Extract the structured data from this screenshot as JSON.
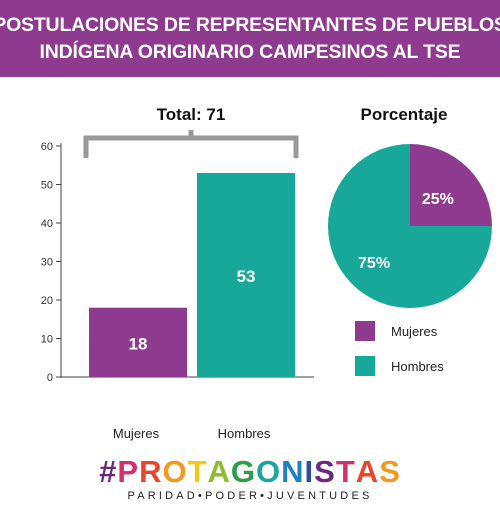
{
  "header": {
    "line1": "POSTULACIONES DE REPRESENTANTES DE PUEBLOS",
    "line2": "INDÍGENA ORIGINARIO CAMPESINOS  AL TSE",
    "color": "#8e3a8f"
  },
  "chart_data": [
    {
      "type": "bar",
      "title": "Total: 71",
      "categories": [
        "Mujeres",
        "Hombres"
      ],
      "values": [
        18,
        53
      ],
      "data_labels": [
        "18",
        "53"
      ],
      "colors": [
        "#8e3a8f",
        "#17a89a"
      ],
      "ylim": [
        0,
        60
      ],
      "yticks": [
        0,
        10,
        20,
        30,
        40,
        50,
        60
      ],
      "grid": false
    },
    {
      "type": "pie",
      "title": "Porcentaje",
      "labels": [
        "Mujeres",
        "Hombres"
      ],
      "values": [
        25,
        75
      ],
      "data_labels": [
        "25%",
        "75%"
      ],
      "colors": [
        "#8e3a8f",
        "#17a89a"
      ],
      "legend_position": "bottom"
    }
  ],
  "logo": {
    "text": "#PROTAGONISTAS",
    "colors": [
      "#6a2b7e",
      "#d12f6e",
      "#e8452c",
      "#f29a1f",
      "#f2c718",
      "#8bbd2e",
      "#2e9c4c",
      "#1aa5a0",
      "#1f7fc4",
      "#2c4f9e",
      "#6a2b7e",
      "#d12f6e",
      "#e8452c",
      "#f29a1f"
    ],
    "tagline": "PARIDAD•PODER•JUVENTUDES"
  }
}
